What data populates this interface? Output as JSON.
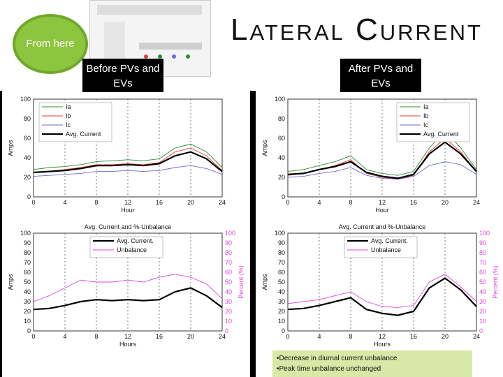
{
  "slide": {
    "title": "Lateral Current",
    "bubble_text": "From here",
    "before_label": "Before PVs and EVs",
    "after_label": "After PVs and EVs",
    "notes": [
      "•Decrease in diurnal current unbalance",
      "•Peak time unbalance unchanged"
    ],
    "accent_color": "#8cc63f"
  },
  "chart_data": [
    {
      "type": "line",
      "panel": "before-phase-currents",
      "title": "",
      "xlabel": "Hour",
      "ylabel": "Amps",
      "xlim": [
        0,
        24
      ],
      "ylim": [
        0,
        100
      ],
      "xticks": [
        "0",
        "4",
        "8",
        "12",
        "16",
        "20",
        "24"
      ],
      "yticks": [
        "0",
        "20",
        "40",
        "60",
        "80",
        "100"
      ],
      "series": [
        {
          "name": "Ia",
          "color": "#2e8b2e",
          "x": [
            0,
            2,
            4,
            6,
            8,
            10,
            12,
            14,
            16,
            18,
            20,
            22,
            24
          ],
          "y": [
            28,
            30,
            31,
            33,
            36,
            37,
            38,
            37,
            39,
            50,
            54,
            46,
            30
          ]
        },
        {
          "name": "Ib",
          "color": "#e23b3b",
          "x": [
            0,
            2,
            4,
            6,
            8,
            10,
            12,
            14,
            16,
            18,
            20,
            22,
            24
          ],
          "y": [
            25,
            26,
            28,
            30,
            33,
            33,
            34,
            33,
            35,
            46,
            50,
            42,
            27
          ]
        },
        {
          "name": "Ic",
          "color": "#6a6ad8",
          "x": [
            0,
            2,
            4,
            6,
            8,
            10,
            12,
            14,
            16,
            18,
            20,
            22,
            24
          ],
          "y": [
            21,
            22,
            23,
            24,
            26,
            26,
            27,
            26,
            27,
            30,
            32,
            29,
            23
          ]
        },
        {
          "name": "Avg. Current",
          "color": "#000000",
          "x": [
            0,
            2,
            4,
            6,
            8,
            10,
            12,
            14,
            16,
            18,
            20,
            22,
            24
          ],
          "y": [
            25,
            26,
            27,
            29,
            32,
            32,
            33,
            32,
            34,
            42,
            46,
            39,
            26
          ]
        }
      ]
    },
    {
      "type": "line",
      "panel": "before-unbalance",
      "title": "Avg. Current and %-Unbalance",
      "xlabel": "Hours",
      "ylabel": "Amps",
      "y2label": "Percent (%)",
      "xlim": [
        0,
        24
      ],
      "ylim": [
        0,
        100
      ],
      "xticks": [
        "0",
        "4",
        "8",
        "12",
        "16",
        "20",
        "24"
      ],
      "yticks": [
        "0",
        "10",
        "20",
        "30",
        "40",
        "50",
        "60",
        "70",
        "80",
        "90",
        "100"
      ],
      "series": [
        {
          "name": "Avg. Current.",
          "color": "#000000",
          "x": [
            0,
            2,
            4,
            6,
            8,
            10,
            12,
            14,
            16,
            18,
            20,
            22,
            24
          ],
          "y": [
            22,
            23,
            26,
            30,
            32,
            31,
            32,
            31,
            32,
            40,
            44,
            36,
            24
          ]
        },
        {
          "name": "Unbalance",
          "color": "#dd44dd",
          "x": [
            0,
            2,
            4,
            6,
            8,
            10,
            12,
            14,
            16,
            18,
            20,
            22,
            24
          ],
          "y": [
            30,
            36,
            44,
            52,
            50,
            50,
            52,
            50,
            55,
            58,
            55,
            48,
            33
          ]
        }
      ]
    },
    {
      "type": "line",
      "panel": "after-phase-currents",
      "title": "",
      "xlabel": "Hour",
      "ylabel": "Amps",
      "xlim": [
        0,
        24
      ],
      "ylim": [
        0,
        100
      ],
      "xticks": [
        "0",
        "4",
        "8",
        "12",
        "16",
        "20",
        "24"
      ],
      "yticks": [
        "0",
        "20",
        "40",
        "60",
        "80",
        "100"
      ],
      "series": [
        {
          "name": "Ia",
          "color": "#2e8b2e",
          "x": [
            0,
            2,
            4,
            6,
            8,
            10,
            12,
            14,
            16,
            18,
            20,
            22,
            24
          ],
          "y": [
            26,
            28,
            32,
            36,
            42,
            28,
            24,
            22,
            26,
            50,
            68,
            50,
            28
          ]
        },
        {
          "name": "Ib",
          "color": "#e23b3b",
          "x": [
            0,
            2,
            4,
            6,
            8,
            10,
            12,
            14,
            16,
            18,
            20,
            22,
            24
          ],
          "y": [
            22,
            24,
            28,
            32,
            38,
            24,
            20,
            18,
            22,
            46,
            60,
            46,
            26
          ]
        },
        {
          "name": "Ic",
          "color": "#6a6ad8",
          "x": [
            0,
            2,
            4,
            6,
            8,
            10,
            12,
            14,
            16,
            18,
            20,
            22,
            24
          ],
          "y": [
            20,
            21,
            24,
            26,
            30,
            22,
            19,
            18,
            21,
            32,
            36,
            33,
            23
          ]
        },
        {
          "name": "Avg. Current",
          "color": "#000000",
          "x": [
            0,
            2,
            4,
            6,
            8,
            10,
            12,
            14,
            16,
            18,
            20,
            22,
            24
          ],
          "y": [
            23,
            24,
            28,
            31,
            36,
            25,
            21,
            19,
            23,
            44,
            56,
            44,
            26
          ]
        }
      ]
    },
    {
      "type": "line",
      "panel": "after-unbalance",
      "title": "Avg. Current and %-Unbalance",
      "xlabel": "Hours",
      "ylabel": "Amps",
      "y2label": "Percent (%)",
      "xlim": [
        0,
        24
      ],
      "ylim": [
        0,
        100
      ],
      "xticks": [
        "0",
        "4",
        "8",
        "12",
        "16",
        "20",
        "24"
      ],
      "yticks": [
        "0",
        "10",
        "20",
        "30",
        "40",
        "50",
        "60",
        "70",
        "80",
        "90",
        "100"
      ],
      "series": [
        {
          "name": "Avg. Current.",
          "color": "#000000",
          "x": [
            0,
            2,
            4,
            6,
            8,
            10,
            12,
            14,
            16,
            18,
            20,
            22,
            24
          ],
          "y": [
            22,
            23,
            26,
            30,
            34,
            22,
            18,
            16,
            20,
            44,
            54,
            42,
            25
          ]
        },
        {
          "name": "Unbalance",
          "color": "#dd44dd",
          "x": [
            0,
            2,
            4,
            6,
            8,
            10,
            12,
            14,
            16,
            18,
            20,
            22,
            24
          ],
          "y": [
            28,
            30,
            32,
            36,
            40,
            30,
            25,
            24,
            26,
            50,
            58,
            45,
            30
          ]
        }
      ]
    }
  ]
}
